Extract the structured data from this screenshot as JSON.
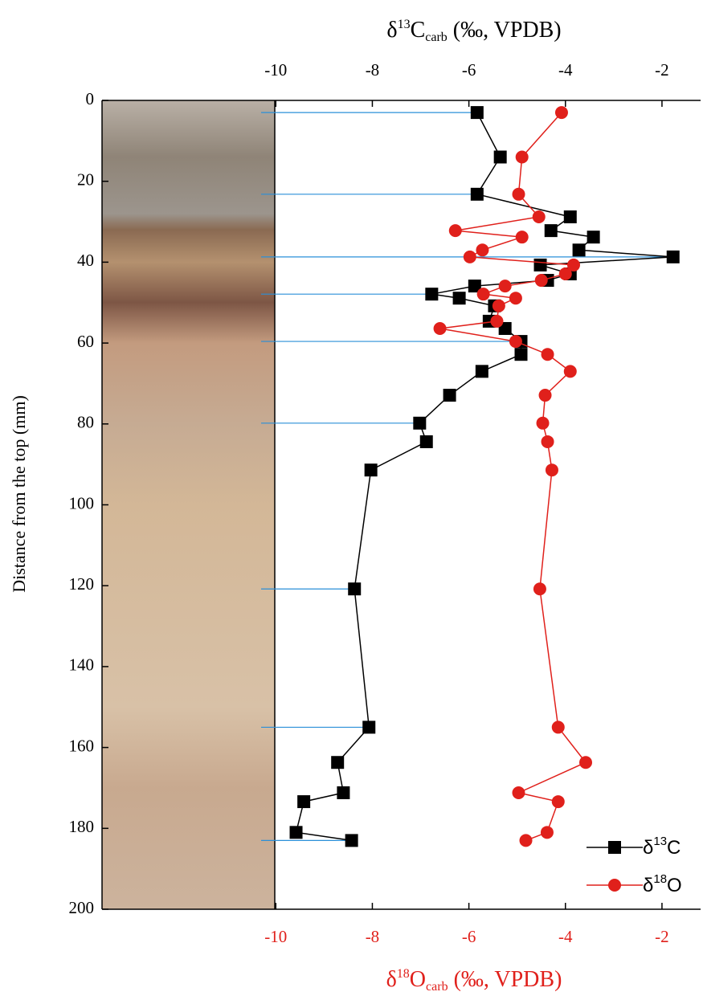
{
  "chart_data": {
    "type": "line",
    "x_label_top": [
      "δ",
      "13",
      "C",
      "carb",
      " (‰, VPDB)"
    ],
    "x_label_bottom": [
      "δ",
      "18",
      "O",
      "carb",
      " (‰, VPDB)"
    ],
    "y_label": "Distance from the top (mm)",
    "y": [
      3,
      14,
      23.2,
      28.8,
      32.2,
      33.8,
      37,
      38.7,
      40.7,
      42.9,
      44.5,
      45.9,
      47.9,
      48.9,
      50.8,
      54.6,
      56.4,
      59.6,
      62.8,
      67,
      72.9,
      79.8,
      84.4,
      91.4,
      120.8,
      155,
      163.7,
      171.2,
      173.4,
      181,
      183
    ],
    "series": [
      {
        "name": [
          "δ",
          "13",
          "C"
        ],
        "color": "#000000",
        "marker": "square",
        "axis": "x_top",
        "values": [
          -5.83,
          -5.35,
          -5.83,
          -3.9,
          -4.3,
          -3.42,
          -3.72,
          -1.77,
          -4.52,
          -3.9,
          -4.37,
          -5.88,
          -6.77,
          -6.2,
          -5.47,
          -5.58,
          -5.25,
          -4.92,
          -4.92,
          -5.73,
          -6.4,
          -7.02,
          -6.88,
          -8.03,
          -8.37,
          -8.07,
          -8.72,
          -8.6,
          -9.42,
          -9.58,
          -8.43
        ]
      },
      {
        "name": [
          "δ",
          "18",
          "O"
        ],
        "color": "#e0201b",
        "marker": "circle",
        "axis": "x_bottom",
        "values": [
          -4.08,
          -4.9,
          -4.97,
          -4.55,
          -6.28,
          -4.9,
          -5.72,
          -5.98,
          -3.83,
          -4.0,
          -4.5,
          -5.25,
          -5.7,
          -5.03,
          -5.38,
          -5.42,
          -6.6,
          -5.03,
          -4.37,
          -3.9,
          -4.42,
          -4.47,
          -4.37,
          -4.28,
          -4.53,
          -4.15,
          -3.58,
          -4.97,
          -4.15,
          -4.38,
          -4.82
        ]
      }
    ],
    "xlim": [
      -13.6,
      -1.2
    ],
    "xticks": [
      -10,
      -8,
      -6,
      -4,
      -2
    ],
    "ylim": [
      0,
      200
    ],
    "yticks": [
      0,
      20,
      40,
      60,
      80,
      100,
      120,
      140,
      160,
      180,
      200
    ],
    "y_inverted": true,
    "legend": "lower right"
  }
}
